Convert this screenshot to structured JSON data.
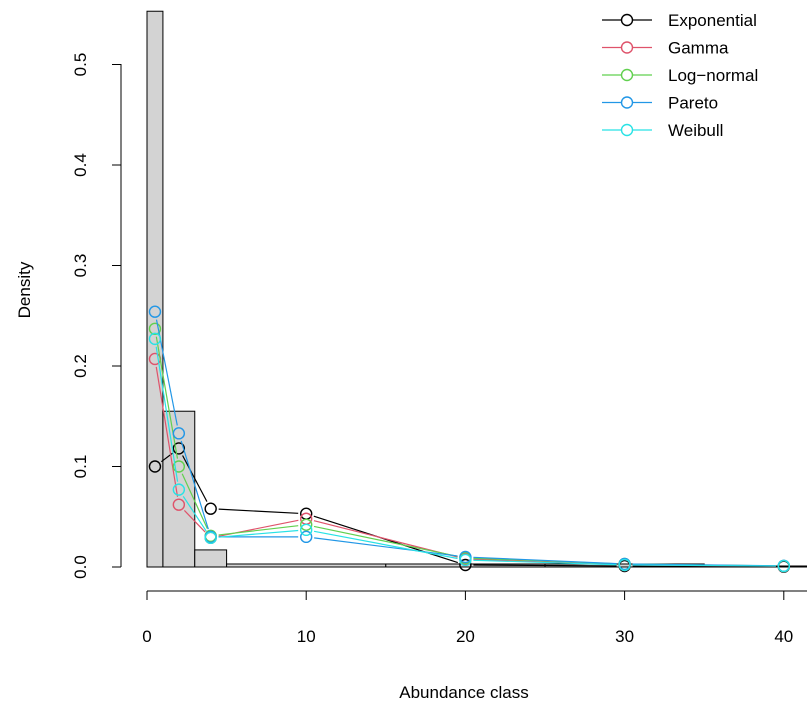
{
  "chart_data": {
    "type": "line",
    "xlabel": "Abundance class",
    "ylabel": "Density",
    "xlim": [
      -1,
      42
    ],
    "ylim": [
      0,
      0.55
    ],
    "x_ticks": [
      "0",
      "10",
      "20",
      "30",
      "40"
    ],
    "y_ticks": [
      "0.0",
      "0.1",
      "0.2",
      "0.3",
      "0.4",
      "0.5"
    ],
    "legend_position": "top-right",
    "histogram": {
      "bins": [
        {
          "from": 0,
          "to": 1,
          "density": 0.553
        },
        {
          "from": 1,
          "to": 3,
          "density": 0.155
        },
        {
          "from": 3,
          "to": 5,
          "density": 0.017
        },
        {
          "from": 5,
          "to": 15,
          "density": 0.003
        },
        {
          "from": 15,
          "to": 25,
          "density": 0.003
        },
        {
          "from": 25,
          "to": 35,
          "density": 0.003
        },
        {
          "from": 35,
          "to": 45,
          "density": 0.001
        }
      ],
      "fill": "#d3d3d3"
    },
    "x": [
      0.5,
      2,
      4,
      10,
      20,
      30,
      40
    ],
    "series": [
      {
        "name": "Exponential",
        "color": "#000000",
        "values": [
          0.1,
          0.118,
          0.058,
          0.053,
          0.002,
          0.001,
          0.0003
        ]
      },
      {
        "name": "Gamma",
        "color": "#DF536B",
        "values": [
          0.207,
          0.062,
          0.029,
          0.048,
          0.008,
          0.002,
          0.0008
        ]
      },
      {
        "name": "Log−normal",
        "color": "#61D04F",
        "values": [
          0.237,
          0.1,
          0.031,
          0.042,
          0.009,
          0.003,
          0.001
        ]
      },
      {
        "name": "Pareto",
        "color": "#2297E6",
        "values": [
          0.254,
          0.133,
          0.03,
          0.03,
          0.01,
          0.003,
          0.0012
        ]
      },
      {
        "name": "Weibull",
        "color": "#28E2E5",
        "values": [
          0.227,
          0.077,
          0.029,
          0.037,
          0.007,
          0.002,
          0.0009
        ]
      }
    ]
  }
}
